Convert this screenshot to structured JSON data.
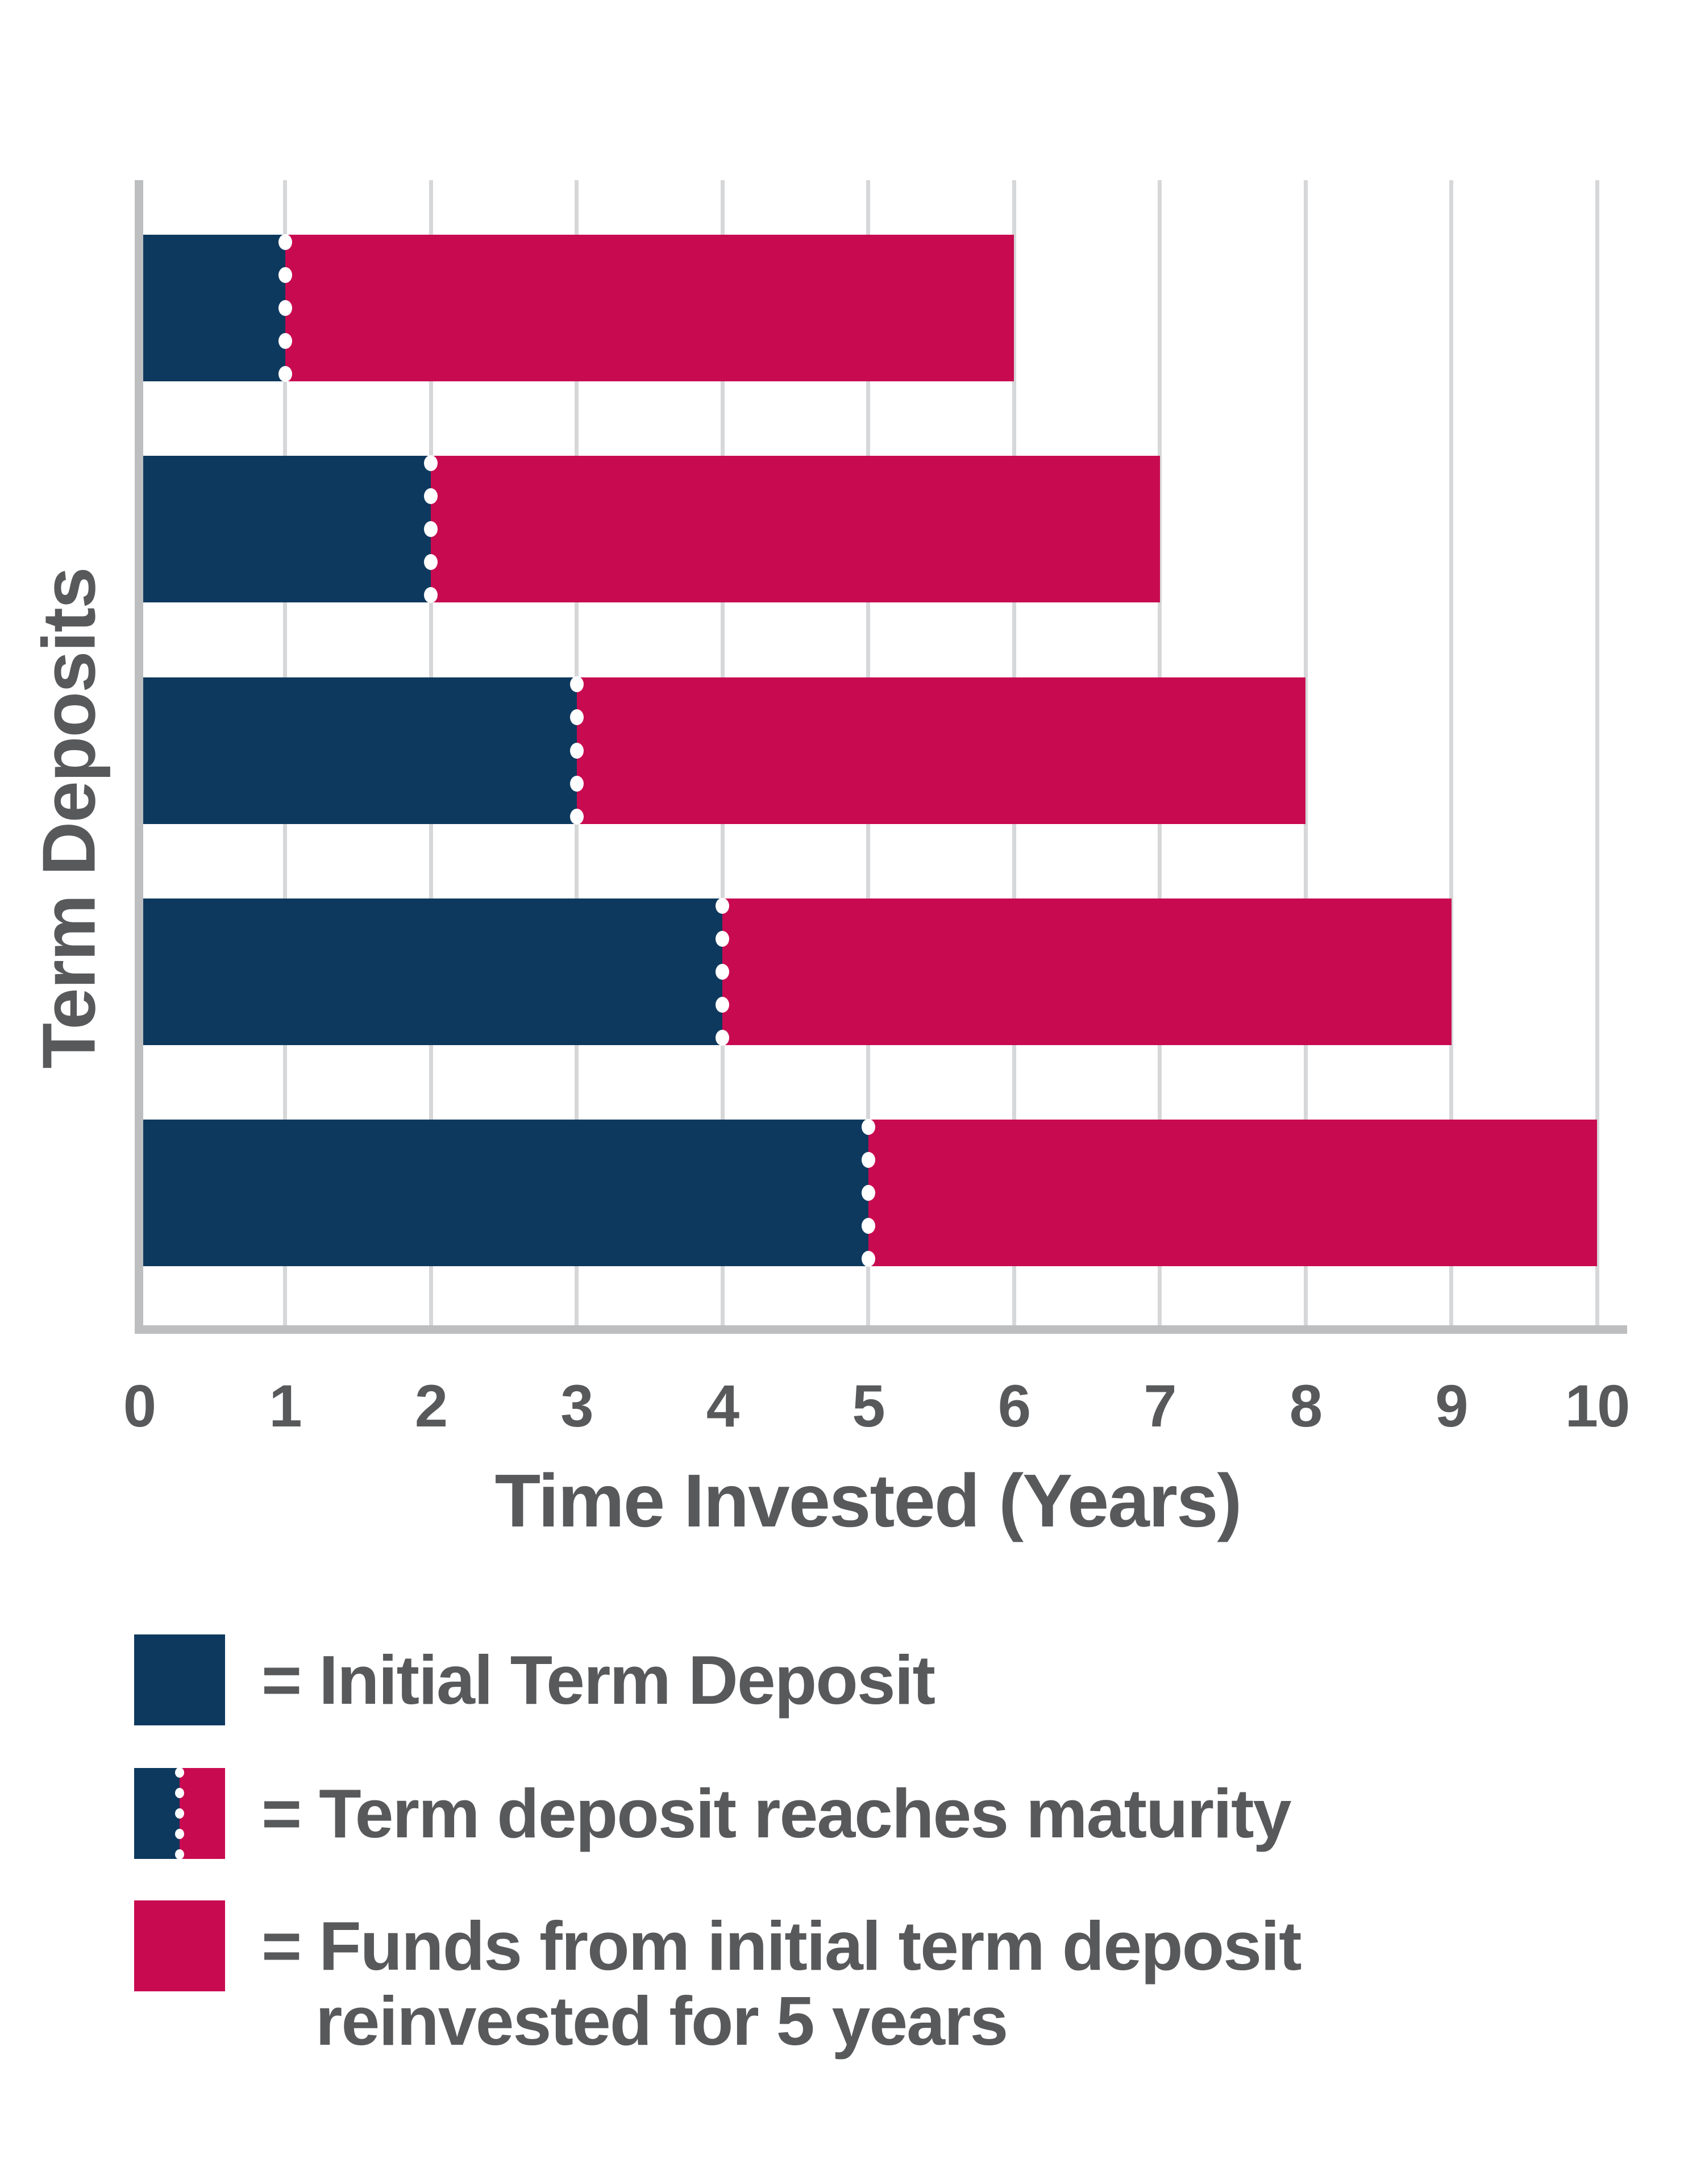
{
  "chart_data": {
    "type": "bar",
    "orientation": "horizontal",
    "stacked": true,
    "xlabel": "Time Invested (Years)",
    "ylabel": "Term Deposits",
    "x_ticks": [
      "0",
      "1",
      "2",
      "3",
      "4",
      "5",
      "6",
      "7",
      "8",
      "9",
      "10"
    ],
    "xlim": [
      0,
      10
    ],
    "grid": true,
    "series": [
      {
        "name": "Initial Term Deposit",
        "color": "#0E395E",
        "values": [
          1,
          2,
          3,
          4,
          5
        ]
      },
      {
        "name": "Funds from initial term deposit reinvested for 5 years",
        "color": "#C80A50",
        "values": [
          5,
          5,
          5,
          5,
          5
        ]
      }
    ],
    "maturity_marker_years": [
      1,
      2,
      3,
      4,
      5
    ],
    "colors": {
      "grid": "#D6D7D8",
      "axis": "#BCBEC0",
      "text": "#58595B",
      "marker_dot": "#FFFFFF"
    }
  },
  "legend": {
    "equals_sign": "=",
    "items": [
      {
        "swatch": "initial-term-deposit",
        "lines": [
          "Initial Term Deposit"
        ]
      },
      {
        "swatch": "term-deposit-reaches-maturity",
        "lines": [
          "Term deposit reaches maturity"
        ]
      },
      {
        "swatch": "funds-reinvested",
        "lines": [
          "Funds from initial term deposit",
          "reinvested for 5 years"
        ]
      }
    ]
  }
}
